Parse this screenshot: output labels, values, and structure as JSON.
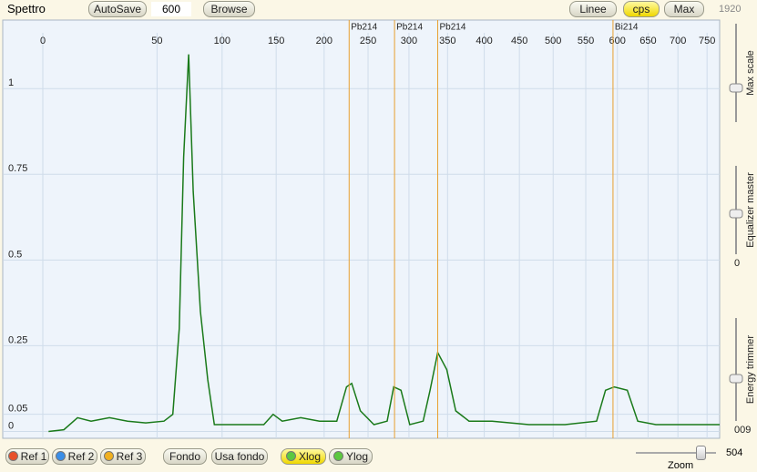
{
  "toolbar": {
    "title": "Spettro",
    "autosave": "AutoSave",
    "samples": "600",
    "browse": "Browse",
    "linee": "Linee",
    "cps": "cps",
    "max": "Max",
    "max_value": "1920"
  },
  "spectrum": {
    "type": "line",
    "color": "#1a7a1a",
    "x": [
      0.5,
      3.7,
      8,
      13.3,
      21.8,
      31.6,
      42.6,
      54.7,
      61,
      65.7,
      69,
      72.8,
      76.3,
      82,
      88,
      93.4,
      113,
      138,
      147,
      156,
      175,
      195,
      214,
      225,
      231,
      241,
      257,
      273,
      281,
      290,
      301,
      318,
      327,
      337,
      349,
      361,
      379,
      411,
      464,
      518,
      567,
      581,
      595,
      616,
      633,
      663,
      724,
      772
    ],
    "values": [
      0,
      0.005,
      0.04,
      0.03,
      0.04,
      0.03,
      0.025,
      0.03,
      0.05,
      0.3,
      0.8,
      1.1,
      0.7,
      0.35,
      0.15,
      0.02,
      0.02,
      0.02,
      0.05,
      0.03,
      0.04,
      0.03,
      0.03,
      0.13,
      0.14,
      0.06,
      0.02,
      0.03,
      0.13,
      0.12,
      0.02,
      0.03,
      0.12,
      0.23,
      0.18,
      0.06,
      0.03,
      0.03,
      0.02,
      0.02,
      0.03,
      0.12,
      0.13,
      0.12,
      0.03,
      0.02,
      0.02,
      0.02
    ],
    "xlim": [
      0,
      772
    ],
    "ylim": [
      -0.02,
      1.2
    ],
    "xticks": [
      0,
      50,
      100,
      150,
      200,
      250,
      300,
      350,
      400,
      450,
      500,
      550,
      600,
      650,
      700,
      750
    ],
    "yticks": [
      0,
      0.05,
      0.25,
      0.5,
      0.75,
      1
    ],
    "markers": [
      {
        "label": "Pb214",
        "x": 228
      },
      {
        "label": "Pb214",
        "x": 282
      },
      {
        "label": "Pb214",
        "x": 337
      },
      {
        "label": "Bi214",
        "x": 593
      }
    ]
  },
  "sliders": [
    {
      "label": "Max scale"
    },
    {
      "label": "Equalizer master",
      "value": "0"
    },
    {
      "label": "Energy trimmer",
      "value": "009"
    }
  ],
  "bottom": {
    "ref1": "Ref 1",
    "ref2": "Ref 2",
    "ref3": "Ref 3",
    "fondo": "Fondo",
    "usa_fondo": "Usa fondo",
    "xlog": "Xlog",
    "ylog": "Ylog",
    "zoom": "Zoom",
    "zoom_value": "504"
  }
}
